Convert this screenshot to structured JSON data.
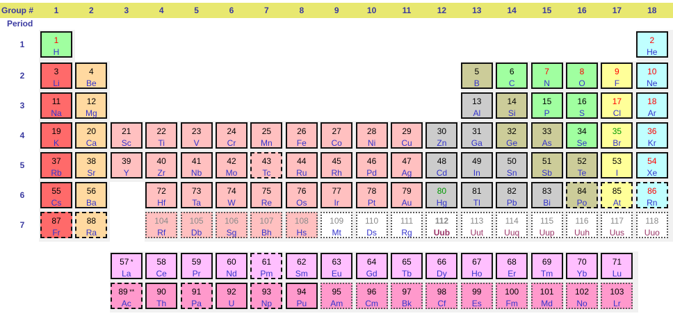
{
  "header": {
    "group_label": "Group #",
    "period_label": "Period",
    "groups": [
      "1",
      "2",
      "3",
      "4",
      "5",
      "6",
      "7",
      "8",
      "9",
      "10",
      "11",
      "12",
      "13",
      "14",
      "15",
      "16",
      "17",
      "18"
    ],
    "periods": [
      "1",
      "2",
      "3",
      "4",
      "5",
      "6",
      "7"
    ]
  },
  "colors": {
    "header_bar": "#e8e870",
    "header_text": "#3a3aa0",
    "alkali_metal": "#ff6a6a",
    "alkaline_earth": "#ffd9a0",
    "transition_metal": "#ffc0c0",
    "post_transition": "#cccccc",
    "metalloid": "#cccc99",
    "nonmetal": "#a0ffa0",
    "halogen": "#ffff99",
    "noble_gas": "#c0ffff",
    "lanthanide": "#ffbfff",
    "actinide": "#ff99cc",
    "unknown": "#ffffff",
    "text_solid": "#000000",
    "text_liquid": "#009900",
    "text_gas": "#ff0000",
    "text_synthetic": "#8a8a8a",
    "symbol_blue": "#3333cc"
  },
  "elements": [
    {
      "n": "1",
      "s": "H",
      "g": 1,
      "p": 1,
      "cat": "nonmetal",
      "nc": "text_gas"
    },
    {
      "n": "2",
      "s": "He",
      "g": 18,
      "p": 1,
      "cat": "noble_gas",
      "nc": "text_gas"
    },
    {
      "n": "3",
      "s": "Li",
      "g": 1,
      "p": 2,
      "cat": "alkali_metal"
    },
    {
      "n": "4",
      "s": "Be",
      "g": 2,
      "p": 2,
      "cat": "alkaline_earth"
    },
    {
      "n": "5",
      "s": "B",
      "g": 13,
      "p": 2,
      "cat": "metalloid"
    },
    {
      "n": "6",
      "s": "C",
      "g": 14,
      "p": 2,
      "cat": "nonmetal"
    },
    {
      "n": "7",
      "s": "N",
      "g": 15,
      "p": 2,
      "cat": "nonmetal",
      "nc": "text_gas"
    },
    {
      "n": "8",
      "s": "O",
      "g": 16,
      "p": 2,
      "cat": "nonmetal",
      "nc": "text_gas"
    },
    {
      "n": "9",
      "s": "F",
      "g": 17,
      "p": 2,
      "cat": "halogen",
      "nc": "text_gas"
    },
    {
      "n": "10",
      "s": "Ne",
      "g": 18,
      "p": 2,
      "cat": "noble_gas",
      "nc": "text_gas"
    },
    {
      "n": "11",
      "s": "Na",
      "g": 1,
      "p": 3,
      "cat": "alkali_metal"
    },
    {
      "n": "12",
      "s": "Mg",
      "g": 2,
      "p": 3,
      "cat": "alkaline_earth"
    },
    {
      "n": "13",
      "s": "Al",
      "g": 13,
      "p": 3,
      "cat": "post_transition"
    },
    {
      "n": "14",
      "s": "Si",
      "g": 14,
      "p": 3,
      "cat": "metalloid"
    },
    {
      "n": "15",
      "s": "P",
      "g": 15,
      "p": 3,
      "cat": "nonmetal"
    },
    {
      "n": "16",
      "s": "S",
      "g": 16,
      "p": 3,
      "cat": "nonmetal"
    },
    {
      "n": "17",
      "s": "Cl",
      "g": 17,
      "p": 3,
      "cat": "halogen",
      "nc": "text_gas"
    },
    {
      "n": "18",
      "s": "Ar",
      "g": 18,
      "p": 3,
      "cat": "noble_gas",
      "nc": "text_gas"
    },
    {
      "n": "19",
      "s": "K",
      "g": 1,
      "p": 4,
      "cat": "alkali_metal"
    },
    {
      "n": "20",
      "s": "Ca",
      "g": 2,
      "p": 4,
      "cat": "alkaline_earth"
    },
    {
      "n": "21",
      "s": "Sc",
      "g": 3,
      "p": 4,
      "cat": "transition_metal"
    },
    {
      "n": "22",
      "s": "Ti",
      "g": 4,
      "p": 4,
      "cat": "transition_metal"
    },
    {
      "n": "23",
      "s": "V",
      "g": 5,
      "p": 4,
      "cat": "transition_metal"
    },
    {
      "n": "24",
      "s": "Cr",
      "g": 6,
      "p": 4,
      "cat": "transition_metal"
    },
    {
      "n": "25",
      "s": "Mn",
      "g": 7,
      "p": 4,
      "cat": "transition_metal"
    },
    {
      "n": "26",
      "s": "Fe",
      "g": 8,
      "p": 4,
      "cat": "transition_metal"
    },
    {
      "n": "27",
      "s": "Co",
      "g": 9,
      "p": 4,
      "cat": "transition_metal"
    },
    {
      "n": "28",
      "s": "Ni",
      "g": 10,
      "p": 4,
      "cat": "transition_metal"
    },
    {
      "n": "29",
      "s": "Cu",
      "g": 11,
      "p": 4,
      "cat": "transition_metal"
    },
    {
      "n": "30",
      "s": "Zn",
      "g": 12,
      "p": 4,
      "cat": "post_transition"
    },
    {
      "n": "31",
      "s": "Ga",
      "g": 13,
      "p": 4,
      "cat": "post_transition"
    },
    {
      "n": "32",
      "s": "Ge",
      "g": 14,
      "p": 4,
      "cat": "metalloid"
    },
    {
      "n": "33",
      "s": "As",
      "g": 15,
      "p": 4,
      "cat": "metalloid"
    },
    {
      "n": "34",
      "s": "Se",
      "g": 16,
      "p": 4,
      "cat": "nonmetal"
    },
    {
      "n": "35",
      "s": "Br",
      "g": 17,
      "p": 4,
      "cat": "halogen",
      "nc": "text_liquid"
    },
    {
      "n": "36",
      "s": "Kr",
      "g": 18,
      "p": 4,
      "cat": "noble_gas",
      "nc": "text_gas"
    },
    {
      "n": "37",
      "s": "Rb",
      "g": 1,
      "p": 5,
      "cat": "alkali_metal"
    },
    {
      "n": "38",
      "s": "Sr",
      "g": 2,
      "p": 5,
      "cat": "alkaline_earth"
    },
    {
      "n": "39",
      "s": "Y",
      "g": 3,
      "p": 5,
      "cat": "transition_metal"
    },
    {
      "n": "40",
      "s": "Zr",
      "g": 4,
      "p": 5,
      "cat": "transition_metal"
    },
    {
      "n": "41",
      "s": "Nb",
      "g": 5,
      "p": 5,
      "cat": "transition_metal"
    },
    {
      "n": "42",
      "s": "Mo",
      "g": 6,
      "p": 5,
      "cat": "transition_metal"
    },
    {
      "n": "43",
      "s": "Tc",
      "g": 7,
      "p": 5,
      "cat": "transition_metal",
      "b": "dashed"
    },
    {
      "n": "44",
      "s": "Ru",
      "g": 8,
      "p": 5,
      "cat": "transition_metal"
    },
    {
      "n": "45",
      "s": "Rh",
      "g": 9,
      "p": 5,
      "cat": "transition_metal"
    },
    {
      "n": "46",
      "s": "Pd",
      "g": 10,
      "p": 5,
      "cat": "transition_metal"
    },
    {
      "n": "47",
      "s": "Ag",
      "g": 11,
      "p": 5,
      "cat": "transition_metal"
    },
    {
      "n": "48",
      "s": "Cd",
      "g": 12,
      "p": 5,
      "cat": "post_transition"
    },
    {
      "n": "49",
      "s": "In",
      "g": 13,
      "p": 5,
      "cat": "post_transition"
    },
    {
      "n": "50",
      "s": "Sn",
      "g": 14,
      "p": 5,
      "cat": "post_transition"
    },
    {
      "n": "51",
      "s": "Sb",
      "g": 15,
      "p": 5,
      "cat": "metalloid"
    },
    {
      "n": "52",
      "s": "Te",
      "g": 16,
      "p": 5,
      "cat": "metalloid"
    },
    {
      "n": "53",
      "s": "I",
      "g": 17,
      "p": 5,
      "cat": "halogen"
    },
    {
      "n": "54",
      "s": "Xe",
      "g": 18,
      "p": 5,
      "cat": "noble_gas",
      "nc": "text_gas"
    },
    {
      "n": "55",
      "s": "Cs",
      "g": 1,
      "p": 6,
      "cat": "alkali_metal"
    },
    {
      "n": "56",
      "s": "Ba",
      "g": 2,
      "p": 6,
      "cat": "alkaline_earth"
    },
    {
      "n": "72",
      "s": "Hf",
      "g": 4,
      "p": 6,
      "cat": "transition_metal"
    },
    {
      "n": "73",
      "s": "Ta",
      "g": 5,
      "p": 6,
      "cat": "transition_metal"
    },
    {
      "n": "74",
      "s": "W",
      "g": 6,
      "p": 6,
      "cat": "transition_metal"
    },
    {
      "n": "75",
      "s": "Re",
      "g": 7,
      "p": 6,
      "cat": "transition_metal"
    },
    {
      "n": "76",
      "s": "Os",
      "g": 8,
      "p": 6,
      "cat": "transition_metal"
    },
    {
      "n": "77",
      "s": "Ir",
      "g": 9,
      "p": 6,
      "cat": "transition_metal"
    },
    {
      "n": "78",
      "s": "Pt",
      "g": 10,
      "p": 6,
      "cat": "transition_metal"
    },
    {
      "n": "79",
      "s": "Au",
      "g": 11,
      "p": 6,
      "cat": "transition_metal"
    },
    {
      "n": "80",
      "s": "Hg",
      "g": 12,
      "p": 6,
      "cat": "post_transition",
      "nc": "text_liquid"
    },
    {
      "n": "81",
      "s": "Tl",
      "g": 13,
      "p": 6,
      "cat": "post_transition"
    },
    {
      "n": "82",
      "s": "Pb",
      "g": 14,
      "p": 6,
      "cat": "post_transition"
    },
    {
      "n": "83",
      "s": "Bi",
      "g": 15,
      "p": 6,
      "cat": "post_transition"
    },
    {
      "n": "84",
      "s": "Po",
      "g": 16,
      "p": 6,
      "cat": "metalloid",
      "b": "dashed"
    },
    {
      "n": "85",
      "s": "At",
      "g": 17,
      "p": 6,
      "cat": "halogen",
      "b": "dashed"
    },
    {
      "n": "86",
      "s": "Rn",
      "g": 18,
      "p": 6,
      "cat": "noble_gas",
      "nc": "text_gas",
      "b": "dashed"
    },
    {
      "n": "87",
      "s": "Fr",
      "g": 1,
      "p": 7,
      "cat": "alkali_metal",
      "b": "dashed"
    },
    {
      "n": "88",
      "s": "Ra",
      "g": 2,
      "p": 7,
      "cat": "alkaline_earth",
      "b": "dashed"
    },
    {
      "n": "104",
      "s": "Rf",
      "g": 4,
      "p": 7,
      "cat": "transition_metal",
      "nc": "text_synthetic",
      "b": "dotted"
    },
    {
      "n": "105",
      "s": "Db",
      "g": 5,
      "p": 7,
      "cat": "transition_metal",
      "nc": "text_synthetic",
      "b": "dotted"
    },
    {
      "n": "106",
      "s": "Sg",
      "g": 6,
      "p": 7,
      "cat": "transition_metal",
      "nc": "text_synthetic",
      "b": "dotted"
    },
    {
      "n": "107",
      "s": "Bh",
      "g": 7,
      "p": 7,
      "cat": "transition_metal",
      "nc": "text_synthetic",
      "b": "dotted"
    },
    {
      "n": "108",
      "s": "Hs",
      "g": 8,
      "p": 7,
      "cat": "transition_metal",
      "nc": "text_synthetic",
      "b": "dotted"
    },
    {
      "n": "109",
      "s": "Mt",
      "g": 9,
      "p": 7,
      "cat": "unknown",
      "nc": "text_synthetic",
      "b": "dotted"
    },
    {
      "n": "110",
      "s": "Ds",
      "g": 10,
      "p": 7,
      "cat": "unknown",
      "nc": "text_synthetic",
      "b": "dotted"
    },
    {
      "n": "111",
      "s": "Rg",
      "g": 11,
      "p": 7,
      "cat": "unknown",
      "nc": "text_synthetic",
      "b": "dotted"
    },
    {
      "n": "112",
      "s": "Uub",
      "g": 12,
      "p": 7,
      "cat": "unknown",
      "nc": "text_synthetic",
      "b": "dotted",
      "bold": true,
      "sc": "#993366"
    },
    {
      "n": "113",
      "s": "Uut",
      "g": 13,
      "p": 7,
      "cat": "unknown",
      "nc": "text_synthetic",
      "b": "dotted",
      "sc": "#993366"
    },
    {
      "n": "114",
      "s": "Uuq",
      "g": 14,
      "p": 7,
      "cat": "unknown",
      "nc": "text_synthetic",
      "b": "dotted",
      "sc": "#993366"
    },
    {
      "n": "115",
      "s": "Uup",
      "g": 15,
      "p": 7,
      "cat": "unknown",
      "nc": "text_synthetic",
      "b": "dotted",
      "sc": "#993366"
    },
    {
      "n": "116",
      "s": "Uuh",
      "g": 16,
      "p": 7,
      "cat": "unknown",
      "nc": "text_synthetic",
      "b": "dotted",
      "sc": "#993366"
    },
    {
      "n": "117",
      "s": "Uus",
      "g": 17,
      "p": 7,
      "cat": "unknown",
      "nc": "text_synthetic",
      "b": "dotted",
      "sc": "#993366"
    },
    {
      "n": "118",
      "s": "Uuo",
      "g": 18,
      "p": 7,
      "cat": "unknown",
      "nc": "text_synthetic",
      "b": "dotted",
      "sc": "#993366"
    },
    {
      "n": "57",
      "s": "La",
      "g": 3,
      "p": "L",
      "cat": "lanthanide",
      "mk": "*"
    },
    {
      "n": "58",
      "s": "Ce",
      "g": 4,
      "p": "L",
      "cat": "lanthanide"
    },
    {
      "n": "59",
      "s": "Pr",
      "g": 5,
      "p": "L",
      "cat": "lanthanide"
    },
    {
      "n": "60",
      "s": "Nd",
      "g": 6,
      "p": "L",
      "cat": "lanthanide"
    },
    {
      "n": "61",
      "s": "Pm",
      "g": 7,
      "p": "L",
      "cat": "lanthanide",
      "b": "dashed"
    },
    {
      "n": "62",
      "s": "Sm",
      "g": 8,
      "p": "L",
      "cat": "lanthanide"
    },
    {
      "n": "63",
      "s": "Eu",
      "g": 9,
      "p": "L",
      "cat": "lanthanide"
    },
    {
      "n": "64",
      "s": "Gd",
      "g": 10,
      "p": "L",
      "cat": "lanthanide"
    },
    {
      "n": "65",
      "s": "Tb",
      "g": 11,
      "p": "L",
      "cat": "lanthanide"
    },
    {
      "n": "66",
      "s": "Dy",
      "g": 12,
      "p": "L",
      "cat": "lanthanide"
    },
    {
      "n": "67",
      "s": "Ho",
      "g": 13,
      "p": "L",
      "cat": "lanthanide"
    },
    {
      "n": "68",
      "s": "Er",
      "g": 14,
      "p": "L",
      "cat": "lanthanide"
    },
    {
      "n": "69",
      "s": "Tm",
      "g": 15,
      "p": "L",
      "cat": "lanthanide"
    },
    {
      "n": "70",
      "s": "Yb",
      "g": 16,
      "p": "L",
      "cat": "lanthanide"
    },
    {
      "n": "71",
      "s": "Lu",
      "g": 17,
      "p": "L",
      "cat": "lanthanide"
    },
    {
      "n": "89",
      "s": "Ac",
      "g": 3,
      "p": "A",
      "cat": "actinide",
      "mk": "**",
      "b": "dashed"
    },
    {
      "n": "90",
      "s": "Th",
      "g": 4,
      "p": "A",
      "cat": "actinide"
    },
    {
      "n": "91",
      "s": "Pa",
      "g": 5,
      "p": "A",
      "cat": "actinide",
      "b": "dashed"
    },
    {
      "n": "92",
      "s": "U",
      "g": 6,
      "p": "A",
      "cat": "actinide"
    },
    {
      "n": "93",
      "s": "Np",
      "g": 7,
      "p": "A",
      "cat": "actinide",
      "b": "dashed"
    },
    {
      "n": "94",
      "s": "Pu",
      "g": 8,
      "p": "A",
      "cat": "actinide"
    },
    {
      "n": "95",
      "s": "Am",
      "g": 9,
      "p": "A",
      "cat": "actinide",
      "b": "dotted"
    },
    {
      "n": "96",
      "s": "Cm",
      "g": 10,
      "p": "A",
      "cat": "actinide",
      "b": "dotted"
    },
    {
      "n": "97",
      "s": "Bk",
      "g": 11,
      "p": "A",
      "cat": "actinide",
      "b": "dotted"
    },
    {
      "n": "98",
      "s": "Cf",
      "g": 12,
      "p": "A",
      "cat": "actinide",
      "b": "dotted"
    },
    {
      "n": "99",
      "s": "Es",
      "g": 13,
      "p": "A",
      "cat": "actinide",
      "b": "dotted"
    },
    {
      "n": "100",
      "s": "Fm",
      "g": 14,
      "p": "A",
      "cat": "actinide",
      "b": "dotted"
    },
    {
      "n": "101",
      "s": "Md",
      "g": 15,
      "p": "A",
      "cat": "actinide",
      "b": "dotted"
    },
    {
      "n": "102",
      "s": "No",
      "g": 16,
      "p": "A",
      "cat": "actinide",
      "b": "dotted"
    },
    {
      "n": "103",
      "s": "Lr",
      "g": 17,
      "p": "A",
      "cat": "actinide",
      "b": "dotted"
    }
  ]
}
